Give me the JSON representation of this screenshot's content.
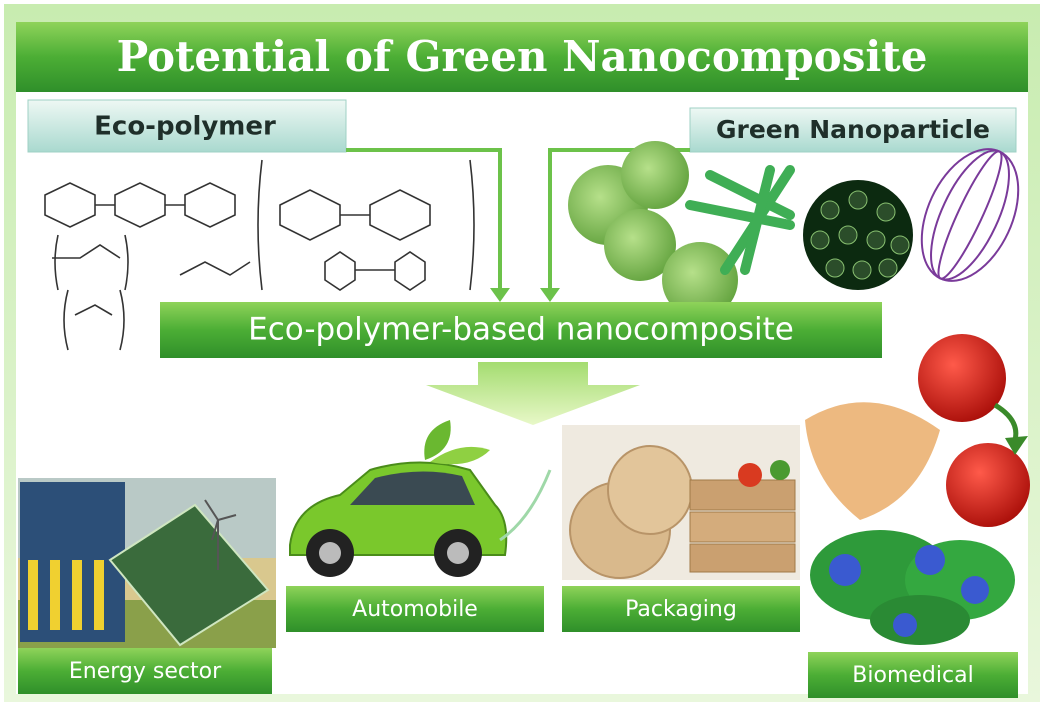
{
  "header": {
    "title": "Potential of Green Nanocomposite"
  },
  "sources": {
    "polymer": "Eco-polymer",
    "nanoparticle": "Green Nanoparticle"
  },
  "product": "Eco-polymer-based nanocomposite",
  "applications": [
    "Automobile",
    "Packaging",
    "Energy sector",
    "Biomedical"
  ]
}
